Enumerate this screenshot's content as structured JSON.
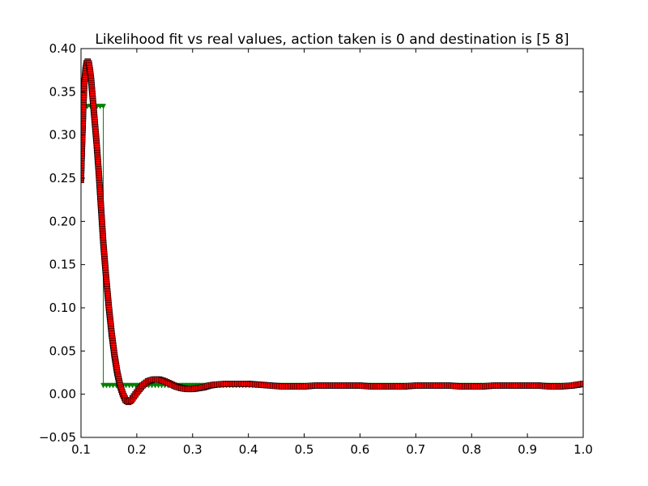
{
  "chart_data": {
    "type": "line",
    "title": "Likelihood fit vs real values, action taken is 0 and destination is [5 8]",
    "xlabel": "",
    "ylabel": "",
    "xlim": [
      0.1,
      1.0
    ],
    "ylim": [
      -0.05,
      0.4
    ],
    "x_ticks": [
      0.1,
      0.2,
      0.3,
      0.4,
      0.5,
      0.6,
      0.7,
      0.8,
      0.9,
      1.0
    ],
    "x_tick_labels": [
      "0.1",
      "0.2",
      "0.3",
      "0.4",
      "0.5",
      "0.6",
      "0.7",
      "0.8",
      "0.9",
      "1.0"
    ],
    "y_ticks": [
      -0.05,
      0.0,
      0.05,
      0.1,
      0.15,
      0.2,
      0.25,
      0.3,
      0.35,
      0.4
    ],
    "y_tick_labels": [
      "−0.05",
      "0.00",
      "0.05",
      "0.10",
      "0.15",
      "0.20",
      "0.25",
      "0.30",
      "0.35",
      "0.40"
    ],
    "grid": false,
    "series": [
      {
        "color": "#008000",
        "marker": "triangle-down",
        "style": "step",
        "x": [
          0.1,
          0.14,
          0.14,
          1.0
        ],
        "y": [
          0.333,
          0.333,
          0.01,
          0.01
        ]
      },
      {
        "color": "#ff0000",
        "marker": "square",
        "style": "markers",
        "x": [
          0.1,
          0.102,
          0.104,
          0.106,
          0.108,
          0.11,
          0.112,
          0.114,
          0.116,
          0.118,
          0.12,
          0.124,
          0.128,
          0.132,
          0.136,
          0.14,
          0.145,
          0.15,
          0.155,
          0.16,
          0.165,
          0.17,
          0.175,
          0.18,
          0.185,
          0.19,
          0.2,
          0.21,
          0.22,
          0.23,
          0.24,
          0.25,
          0.26,
          0.27,
          0.28,
          0.29,
          0.3,
          0.31,
          0.32,
          0.33,
          0.34,
          0.36,
          0.38,
          0.4,
          0.42,
          0.44,
          0.46,
          0.48,
          0.5,
          0.52,
          0.54,
          0.56,
          0.58,
          0.6,
          0.62,
          0.64,
          0.66,
          0.68,
          0.7,
          0.72,
          0.74,
          0.76,
          0.78,
          0.8,
          0.82,
          0.84,
          0.86,
          0.88,
          0.9,
          0.92,
          0.94,
          0.96,
          0.98,
          1.0
        ],
        "y": [
          0.248,
          0.29,
          0.33,
          0.36,
          0.375,
          0.383,
          0.385,
          0.383,
          0.375,
          0.365,
          0.35,
          0.32,
          0.29,
          0.255,
          0.215,
          0.175,
          0.135,
          0.1,
          0.07,
          0.045,
          0.025,
          0.01,
          0.0,
          -0.007,
          -0.009,
          -0.007,
          0.002,
          0.01,
          0.015,
          0.017,
          0.017,
          0.015,
          0.012,
          0.009,
          0.007,
          0.006,
          0.006,
          0.007,
          0.008,
          0.01,
          0.011,
          0.012,
          0.012,
          0.012,
          0.011,
          0.01,
          0.009,
          0.009,
          0.009,
          0.01,
          0.01,
          0.01,
          0.01,
          0.01,
          0.009,
          0.009,
          0.009,
          0.009,
          0.01,
          0.01,
          0.01,
          0.01,
          0.009,
          0.009,
          0.009,
          0.01,
          0.01,
          0.01,
          0.01,
          0.01,
          0.009,
          0.009,
          0.01,
          0.012
        ]
      }
    ]
  }
}
